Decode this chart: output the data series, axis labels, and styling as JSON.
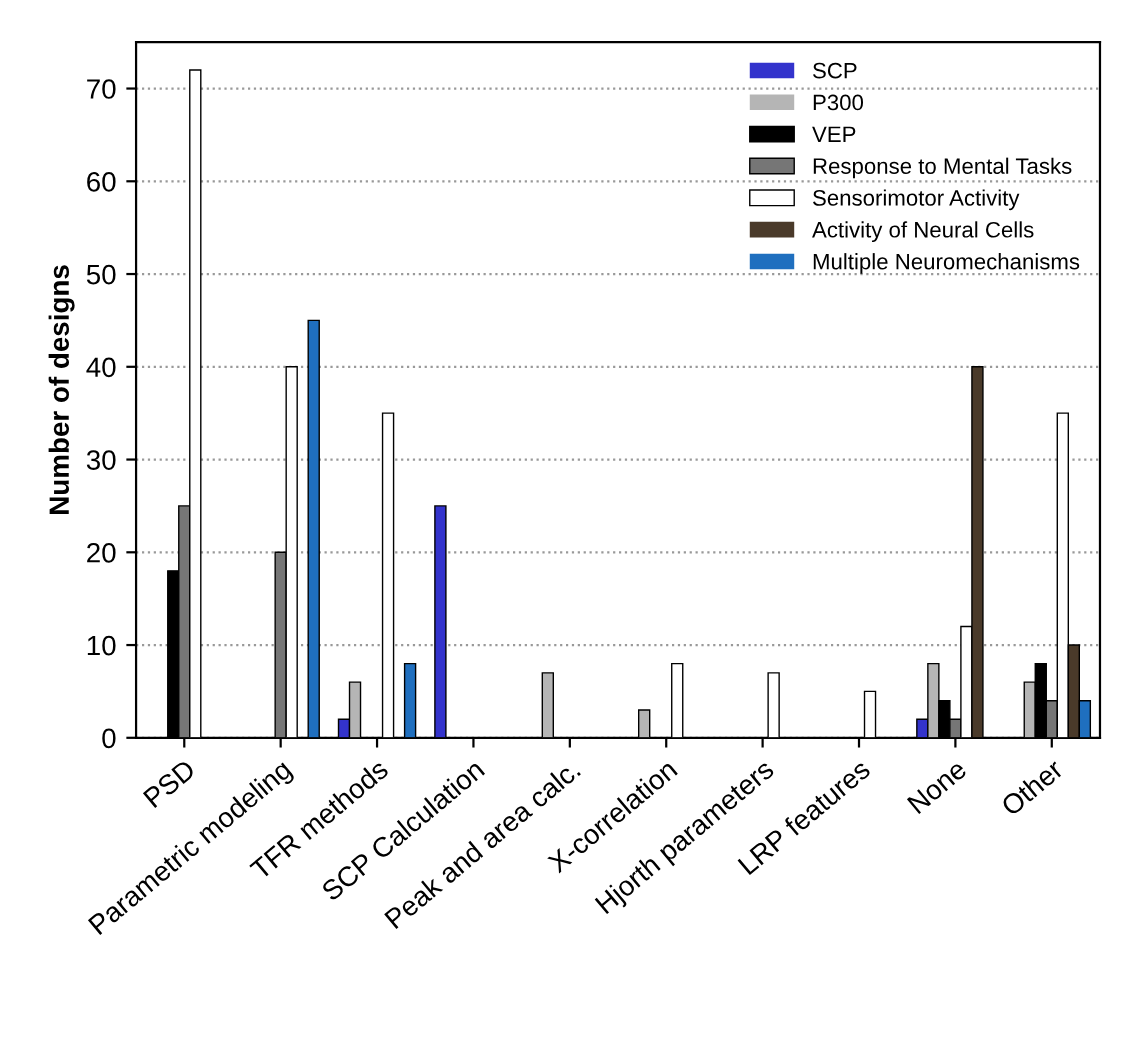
{
  "chart_data": {
    "type": "bar",
    "ylabel": "Number of designs",
    "categories": [
      "PSD",
      "Parametric modeling",
      "TFR methods",
      "SCP Calculation",
      "Peak and area calc.",
      "X-correlation",
      "Hjorth parameters",
      "LRP features",
      "None",
      "Other"
    ],
    "series": [
      {
        "name": "SCP",
        "color": "#3333cc",
        "values": [
          0,
          0,
          2,
          25,
          0,
          0,
          0,
          0,
          2,
          0
        ]
      },
      {
        "name": "P300",
        "color": "#b5b5b5",
        "values": [
          0,
          0,
          6,
          0,
          7,
          3,
          0,
          0,
          8,
          6
        ]
      },
      {
        "name": "VEP",
        "color": "#000000",
        "values": [
          18,
          0,
          0,
          0,
          0,
          0,
          0,
          0,
          4,
          8
        ]
      },
      {
        "name": "Response to Mental Tasks",
        "color": "#767676",
        "values": [
          25,
          20,
          0,
          0,
          0,
          0,
          0,
          0,
          2,
          4
        ]
      },
      {
        "name": "Sensorimotor Activity",
        "color": "#ffffff",
        "values": [
          72,
          40,
          35,
          0,
          0,
          8,
          7,
          5,
          12,
          35
        ]
      },
      {
        "name": "Activity of Neural Cells",
        "color": "#4a3a2a",
        "values": [
          0,
          0,
          0,
          0,
          0,
          0,
          0,
          0,
          40,
          10
        ]
      },
      {
        "name": "Multiple Neuromechanisms",
        "color": "#1f6fbf",
        "values": [
          0,
          45,
          8,
          0,
          0,
          0,
          0,
          0,
          0,
          4
        ]
      }
    ],
    "ylim": [
      0,
      75
    ],
    "yticks": [
      0,
      10,
      20,
      30,
      40,
      50,
      60,
      70
    ],
    "grid": "y",
    "legend": "top right"
  }
}
